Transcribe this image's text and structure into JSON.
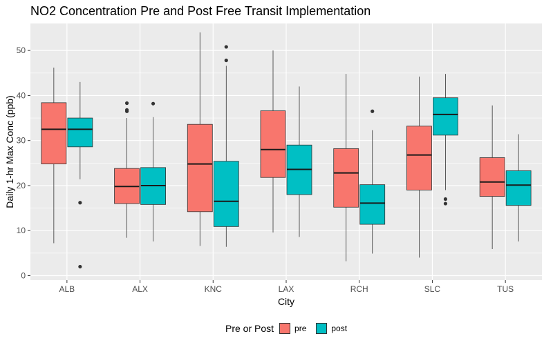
{
  "chart_data": {
    "type": "boxplot",
    "title": "NO2 Concentration Pre and Post Free Transit Implementation",
    "xlabel": "City",
    "ylabel": "Daily 1-hr Max Conc (ppb)",
    "ylim": [
      -1,
      56
    ],
    "yticks": [
      0,
      10,
      20,
      30,
      40,
      50
    ],
    "grid": true,
    "legend_position": "bottom",
    "legend_title": "Pre or Post",
    "categories": [
      "ALB",
      "ALX",
      "KNC",
      "LAX",
      "RCH",
      "SLC",
      "TUS"
    ],
    "series": [
      {
        "name": "pre",
        "color": "#F8766D",
        "boxes": [
          {
            "min": 7.2,
            "q1": 24.8,
            "median": 32.5,
            "q3": 38.4,
            "max": 46.2,
            "outliers": []
          },
          {
            "min": 8.4,
            "q1": 16.0,
            "median": 19.8,
            "q3": 23.8,
            "max": 35.0,
            "outliers": [
              36.5,
              36.8,
              38.3
            ]
          },
          {
            "min": 6.6,
            "q1": 14.2,
            "median": 24.8,
            "q3": 33.6,
            "max": 54.0,
            "outliers": []
          },
          {
            "min": 9.6,
            "q1": 21.8,
            "median": 28.0,
            "q3": 36.6,
            "max": 50.0,
            "outliers": []
          },
          {
            "min": 3.2,
            "q1": 15.2,
            "median": 22.8,
            "q3": 28.2,
            "max": 44.8,
            "outliers": []
          },
          {
            "min": 4.0,
            "q1": 19.0,
            "median": 26.8,
            "q3": 33.2,
            "max": 44.2,
            "outliers": []
          },
          {
            "min": 5.9,
            "q1": 17.6,
            "median": 20.8,
            "q3": 26.2,
            "max": 37.8,
            "outliers": []
          }
        ]
      },
      {
        "name": "post",
        "color": "#00BFC4",
        "boxes": [
          {
            "min": 21.4,
            "q1": 28.6,
            "median": 32.5,
            "q3": 35.0,
            "max": 43.0,
            "outliers": [
              16.2,
              2.0
            ]
          },
          {
            "min": 7.6,
            "q1": 15.8,
            "median": 20.0,
            "q3": 24.0,
            "max": 35.2,
            "outliers": [
              38.2
            ]
          },
          {
            "min": 6.4,
            "q1": 10.9,
            "median": 16.5,
            "q3": 25.4,
            "max": 46.6,
            "outliers": [
              47.8,
              50.8
            ]
          },
          {
            "min": 8.6,
            "q1": 18.0,
            "median": 23.6,
            "q3": 29.0,
            "max": 42.0,
            "outliers": []
          },
          {
            "min": 4.9,
            "q1": 11.4,
            "median": 16.1,
            "q3": 20.2,
            "max": 32.3,
            "outliers": [
              36.5
            ]
          },
          {
            "min": 19.0,
            "q1": 31.2,
            "median": 35.8,
            "q3": 39.5,
            "max": 44.8,
            "outliers": [
              17.0,
              16.0
            ]
          },
          {
            "min": 7.6,
            "q1": 15.6,
            "median": 20.1,
            "q3": 23.3,
            "max": 31.4,
            "outliers": []
          }
        ]
      }
    ]
  }
}
